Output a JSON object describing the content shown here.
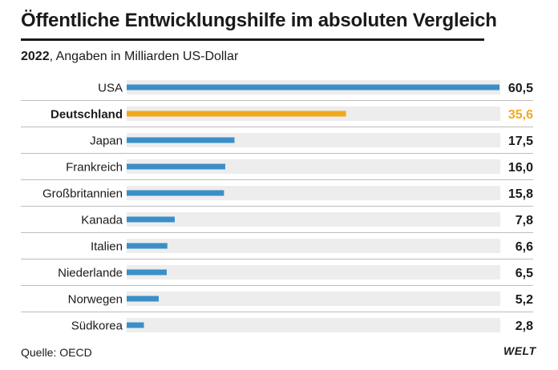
{
  "title": "Öffentliche Entwicklungshilfe im absoluten Vergleich",
  "subtitle_year": "2022",
  "subtitle_rest": ", Angaben in Milliarden US-Dollar",
  "source": "Quelle: OECD",
  "logo": "WELT",
  "colors": {
    "bar": "#3a8fc8",
    "highlight": "#f2a81d",
    "track": "#ededed",
    "divider": "#bdbdbd",
    "text": "#1a1a1a"
  },
  "chart_data": {
    "type": "bar",
    "orientation": "horizontal",
    "categories": [
      "USA",
      "Deutschland",
      "Japan",
      "Frankreich",
      "Großbritannien",
      "Kanada",
      "Italien",
      "Niederlande",
      "Norwegen",
      "Südkorea"
    ],
    "values": [
      60.5,
      35.6,
      17.5,
      16.0,
      15.8,
      7.8,
      6.6,
      6.5,
      5.2,
      2.8
    ],
    "value_labels": [
      "60,5",
      "35,6",
      "17,5",
      "16,0",
      "15,8",
      "7,8",
      "6,6",
      "6,5",
      "5,2",
      "2,8"
    ],
    "highlight": "Deutschland",
    "xlim": [
      0,
      60.5
    ],
    "grid": false
  }
}
